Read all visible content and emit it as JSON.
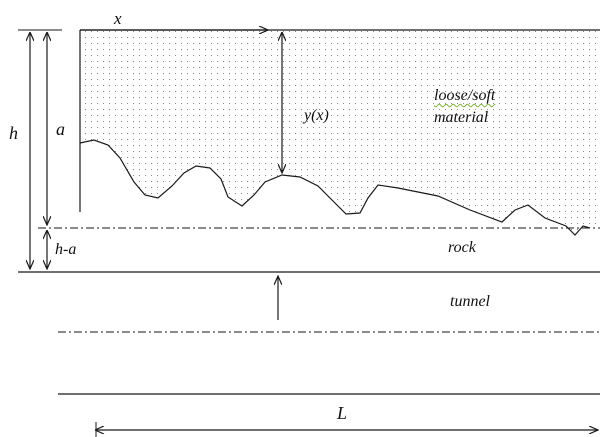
{
  "labels": {
    "x": "x",
    "yx": "y(x)",
    "h": "h",
    "a": "a",
    "h_minus_a": "h-a",
    "loose_soft": "loose/soft",
    "material": "material",
    "rock": "rock",
    "tunnel": "tunnel",
    "L": "L"
  },
  "colors": {
    "line": "#1a1a1a",
    "stipple": "#6b6b6b",
    "spellcheck": "#7fb23a"
  }
}
